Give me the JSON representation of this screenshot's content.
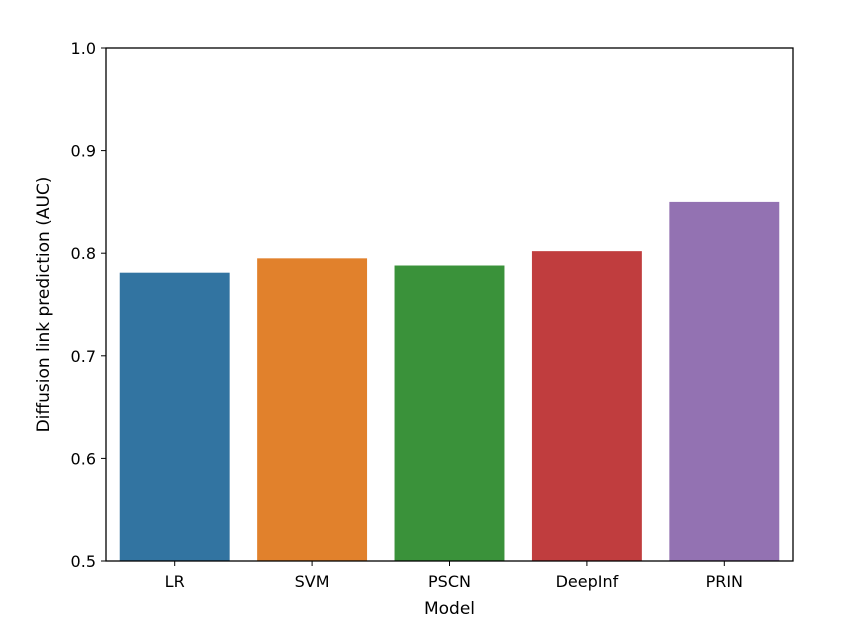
{
  "chart_data": {
    "type": "bar",
    "xlabel": "Model",
    "ylabel": "Diffusion link prediction (AUC)",
    "categories": [
      "LR",
      "SVM",
      "PSCN",
      "DeepInf",
      "PRIN"
    ],
    "values": [
      0.781,
      0.795,
      0.788,
      0.802,
      0.85
    ],
    "colors": [
      "#3274a1",
      "#e1812c",
      "#3a923a",
      "#c03d3e",
      "#9372b2"
    ],
    "ylim": [
      0.5,
      1.0
    ],
    "yticks": [
      0.5,
      0.6,
      0.7,
      0.8,
      0.9,
      1.0
    ],
    "ytick_labels": [
      "0.5",
      "0.6",
      "0.7",
      "0.8",
      "0.9",
      "1.0"
    ],
    "grid": false,
    "legend": "none"
  }
}
